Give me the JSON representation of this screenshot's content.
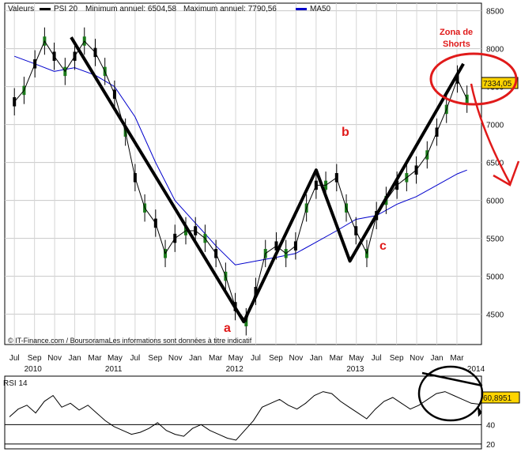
{
  "header": {
    "valeurs_label": "Valeurs",
    "series_label": "PSI 20",
    "min_label": "Minimum annuel: 6504,58",
    "max_label": "Maximum annuel: 7790,56",
    "ma_label": "MA50",
    "price_color": "#000000",
    "ma_color": "#0000cc"
  },
  "credits": "© IT-Finance.com / BoursoramaLes informations sont données à titre indicatif",
  "annotations": {
    "zona_line1": "Zona de",
    "zona_line2": "Shorts",
    "label_a": "a",
    "label_b": "b",
    "label_c": "c",
    "red_color": "#e01a1a"
  },
  "chart_data": [
    {
      "type": "line",
      "title": "PSI 20",
      "ylim": [
        4100,
        8600
      ],
      "y_ticks": [
        4500,
        5000,
        5500,
        6000,
        6500,
        7000,
        7500,
        8000,
        8500
      ],
      "y_tick_labels": [
        "4500",
        "5000",
        "5500",
        "6000",
        "6500",
        "7000",
        "7500",
        "8000",
        "8500"
      ],
      "last_value_label": "7334,05",
      "x_month_labels": [
        "Jul",
        "Sep",
        "Nov",
        "Jan",
        "Mar",
        "May",
        "Jul",
        "Sep",
        "Nov",
        "Jan",
        "Mar",
        "May",
        "Jul",
        "Sep",
        "Nov",
        "Jan",
        "Mar",
        "May",
        "Jul",
        "Sep",
        "Nov",
        "Jan",
        "Mar"
      ],
      "x_year_labels": [
        "2010",
        "2011",
        "2012",
        "2013",
        "2014"
      ],
      "series": [
        {
          "name": "PSI 20",
          "x": [
            2010.5,
            2010.58,
            2010.67,
            2010.75,
            2010.83,
            2010.92,
            2011.0,
            2011.08,
            2011.17,
            2011.25,
            2011.33,
            2011.42,
            2011.5,
            2011.58,
            2011.67,
            2011.75,
            2011.83,
            2011.92,
            2012.0,
            2012.08,
            2012.17,
            2012.25,
            2012.33,
            2012.42,
            2012.5,
            2012.58,
            2012.67,
            2012.75,
            2012.83,
            2012.92,
            2013.0,
            2013.08,
            2013.17,
            2013.25,
            2013.33,
            2013.42,
            2013.5,
            2013.58,
            2013.67,
            2013.75,
            2013.83,
            2013.92,
            2014.0,
            2014.08,
            2014.17,
            2014.25
          ],
          "values": [
            7300,
            7450,
            7800,
            8100,
            7900,
            7700,
            7900,
            8100,
            7950,
            7700,
            7400,
            6900,
            6300,
            5900,
            5700,
            5300,
            5500,
            5600,
            5600,
            5500,
            5300,
            5000,
            4600,
            4400,
            4800,
            5300,
            5400,
            5300,
            5400,
            5900,
            6200,
            6200,
            6300,
            5900,
            5600,
            5300,
            5800,
            6000,
            6200,
            6300,
            6400,
            6600,
            6900,
            7200,
            7600,
            7334
          ]
        },
        {
          "name": "MA50",
          "x": [
            2010.5,
            2010.67,
            2010.83,
            2011.0,
            2011.17,
            2011.33,
            2011.5,
            2011.67,
            2011.83,
            2012.0,
            2012.17,
            2012.33,
            2012.5,
            2012.67,
            2012.83,
            2013.0,
            2013.17,
            2013.33,
            2013.5,
            2013.67,
            2013.83,
            2014.0,
            2014.17,
            2014.25
          ],
          "values": [
            7900,
            7800,
            7700,
            7750,
            7650,
            7500,
            7100,
            6500,
            6000,
            5700,
            5400,
            5150,
            5200,
            5250,
            5300,
            5450,
            5600,
            5750,
            5800,
            5950,
            6050,
            6200,
            6350,
            6400
          ]
        },
        {
          "name": "abc",
          "x": [
            2010.97,
            2012.4,
            2013.0,
            2013.28,
            2014.22
          ],
          "values": [
            8150,
            4400,
            6400,
            5200,
            7800
          ]
        }
      ]
    },
    {
      "type": "line",
      "title": "RSI 14",
      "ylim": [
        15,
        90
      ],
      "y_ticks": [
        20,
        40
      ],
      "y_tick_labels": [
        "20",
        "40"
      ],
      "last_value_label": "60,8951",
      "series": [
        {
          "name": "RSI 14",
          "values": [
            48,
            56,
            60,
            52,
            64,
            70,
            58,
            62,
            55,
            60,
            52,
            44,
            38,
            34,
            30,
            32,
            36,
            42,
            34,
            30,
            28,
            36,
            40,
            34,
            30,
            26,
            24,
            34,
            44,
            58,
            62,
            66,
            60,
            56,
            62,
            70,
            74,
            72,
            64,
            58,
            52,
            46,
            56,
            64,
            68,
            62,
            56,
            60,
            66,
            72,
            74,
            70,
            66,
            62,
            61
          ]
        }
      ]
    }
  ]
}
